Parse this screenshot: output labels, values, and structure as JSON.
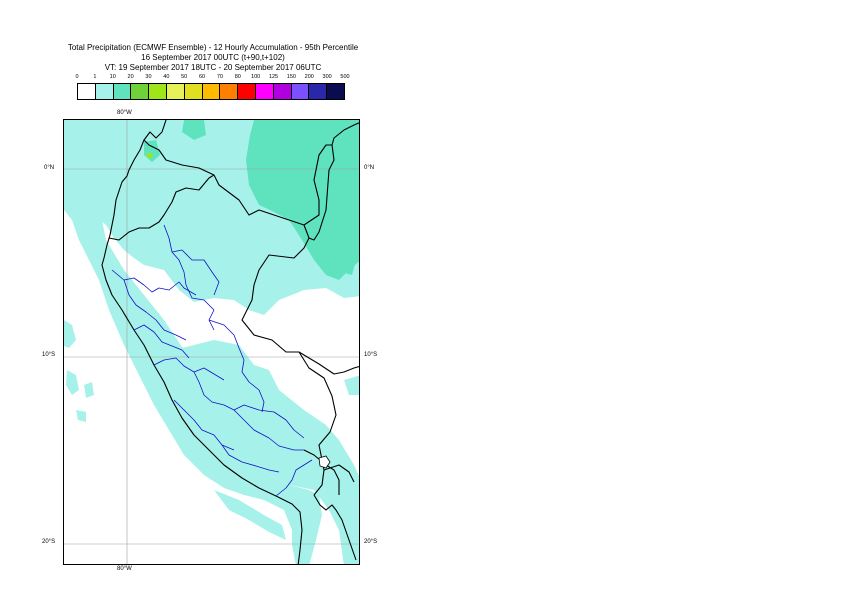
{
  "title": {
    "line1": "Total Precipitation (ECMWF Ensemble) - 12 Hourly Accumulation - 95th Percentile",
    "line2": "16 September 2017 00UTC (t+90,t+102)",
    "line3": "VT: 19 September 2017 18UTC - 20 September 2017 06UTC"
  },
  "legend": {
    "labels": [
      "0",
      "1",
      "10",
      "20",
      "30",
      "40",
      "50",
      "60",
      "70",
      "80",
      "100",
      "125",
      "150",
      "200",
      "300",
      "500"
    ],
    "colors": [
      "#ffffff",
      "#a6f2ea",
      "#5fe3bf",
      "#6fd23a",
      "#9ee61a",
      "#e6f25a",
      "#e0e020",
      "#ffbb00",
      "#ff7f00",
      "#ff0000",
      "#ff00ff",
      "#b000e0",
      "#7b50ff",
      "#2828a8",
      "#0b0b50"
    ]
  },
  "axes": {
    "lon_top": "80°W",
    "lon_bottom": "80°W",
    "lat_left": [
      "0°N",
      "10°S",
      "20°S"
    ],
    "lat_right": [
      "0°N",
      "10°S",
      "20°S"
    ]
  },
  "colors": {
    "light_precip": "#a6f2ea",
    "moderate_precip": "#5fe3bf",
    "heavy_spot": "#9ee61a",
    "coastline": "#000000",
    "admin_boundary": "#1010c8",
    "gridline": "#a0a0a0"
  }
}
